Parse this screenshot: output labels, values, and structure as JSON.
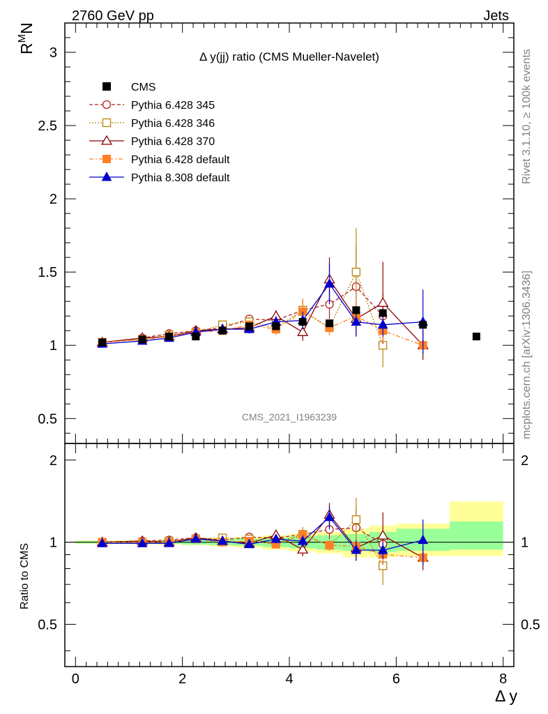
{
  "header": {
    "left": "2760 GeV pp",
    "right": "Jets"
  },
  "side_labels": {
    "rivet": "Rivet 3.1.10, ≥ 100k events",
    "mcplots": "mcplots.cern.ch [arXiv:1306.3436]"
  },
  "watermark": "CMS_2021_I1963239",
  "chart_data": {
    "type": "line",
    "title": "Δ y(jj) ratio (CMS Mueller-Navelet)",
    "ylabel_main": "R^M N",
    "ylabel_ratio": "Ratio to CMS",
    "xlabel": "Δ y",
    "xlim": [
      -0.2,
      8.2
    ],
    "ylim_main": [
      0.33,
      3.2
    ],
    "ylim_ratio": [
      0.35,
      2.3
    ],
    "x_ticks": [
      "0",
      "2",
      "4",
      "6",
      "8"
    ],
    "y_ticks_main": [
      "0.5",
      "1",
      "1.5",
      "2",
      "2.5",
      "3"
    ],
    "y_ticks_ratio": [
      "0.5",
      "1",
      "2"
    ],
    "legend_position": "top-left",
    "cms": {
      "name": "CMS",
      "color": "#000000",
      "x": [
        0.5,
        1.25,
        1.75,
        2.25,
        2.75,
        3.25,
        3.75,
        4.25,
        4.75,
        5.25,
        5.75,
        6.5,
        7.5
      ],
      "y": [
        1.02,
        1.04,
        1.06,
        1.06,
        1.1,
        1.13,
        1.13,
        1.16,
        1.15,
        1.24,
        1.22,
        1.14,
        1.06
      ]
    },
    "uncertainty_band": {
      "edges": [
        0.0,
        1.0,
        1.5,
        2.0,
        2.5,
        3.0,
        3.5,
        4.0,
        4.5,
        5.0,
        5.5,
        6.0,
        7.0,
        8.0
      ],
      "inner": [
        [
          0.99,
          1.01
        ],
        [
          0.99,
          1.01
        ],
        [
          0.985,
          1.015
        ],
        [
          0.98,
          1.02
        ],
        [
          0.975,
          1.025
        ],
        [
          0.97,
          1.03
        ],
        [
          0.96,
          1.04
        ],
        [
          0.95,
          1.05
        ],
        [
          0.94,
          1.06
        ],
        [
          0.93,
          1.07
        ],
        [
          0.92,
          1.09
        ],
        [
          0.93,
          1.12
        ],
        [
          0.94,
          1.19
        ]
      ],
      "outer": [
        [
          0.985,
          1.015
        ],
        [
          0.985,
          1.015
        ],
        [
          0.98,
          1.02
        ],
        [
          0.975,
          1.025
        ],
        [
          0.965,
          1.035
        ],
        [
          0.955,
          1.045
        ],
        [
          0.94,
          1.06
        ],
        [
          0.925,
          1.075
        ],
        [
          0.91,
          1.09
        ],
        [
          0.88,
          1.12
        ],
        [
          0.88,
          1.15
        ],
        [
          0.89,
          1.17
        ],
        [
          0.89,
          1.41
        ]
      ],
      "inner_color": "#99ff99",
      "outer_color": "#ffff99"
    },
    "series": [
      {
        "name": "Pythia 6.428 345",
        "color": "#b22222",
        "dash": "5,3",
        "marker": "open-circle",
        "x": [
          0.5,
          1.25,
          1.75,
          2.25,
          2.75,
          3.25,
          3.75,
          4.25,
          4.75,
          5.25,
          5.75
        ],
        "y": [
          1.02,
          1.05,
          1.08,
          1.1,
          1.12,
          1.18,
          1.17,
          1.24,
          1.28,
          1.4,
          1.2
        ],
        "err": [
          0.01,
          0.01,
          0.015,
          0.015,
          0.02,
          0.03,
          0.04,
          0.07,
          0.1,
          0.28,
          0.15
        ]
      },
      {
        "name": "Pythia 6.428 346",
        "color": "#b8860b",
        "dash": "2,2",
        "marker": "open-square",
        "x": [
          0.5,
          1.25,
          1.75,
          2.25,
          2.75,
          3.25,
          3.75,
          4.25,
          4.75,
          5.25,
          5.75
        ],
        "y": [
          1.02,
          1.04,
          1.07,
          1.09,
          1.14,
          1.16,
          1.12,
          1.24,
          1.12,
          1.5,
          1.0
        ],
        "err": [
          0.01,
          0.01,
          0.015,
          0.015,
          0.02,
          0.03,
          0.04,
          0.08,
          0.05,
          0.3,
          0.15
        ]
      },
      {
        "name": "Pythia 6.428 370",
        "color": "#8b0000",
        "dash": "",
        "marker": "open-triangle",
        "x": [
          0.5,
          1.25,
          1.75,
          2.25,
          2.75,
          3.25,
          3.75,
          4.25,
          4.75,
          5.25,
          5.75,
          6.5
        ],
        "y": [
          1.02,
          1.05,
          1.06,
          1.1,
          1.11,
          1.12,
          1.2,
          1.09,
          1.45,
          1.18,
          1.29,
          1.0
        ],
        "err": [
          0.01,
          0.01,
          0.015,
          0.015,
          0.02,
          0.03,
          0.04,
          0.06,
          0.15,
          0.12,
          0.28,
          0.1
        ]
      },
      {
        "name": "Pythia 6.428 default",
        "color": "#ff7f27",
        "dash": "6,3,2,3",
        "marker": "filled-square",
        "x": [
          0.5,
          1.25,
          1.75,
          2.25,
          2.75,
          3.25,
          3.75,
          4.25,
          4.75,
          5.25,
          5.75,
          6.5
        ],
        "y": [
          1.02,
          1.04,
          1.06,
          1.09,
          1.1,
          1.14,
          1.11,
          1.23,
          1.12,
          1.2,
          1.1,
          1.0
        ],
        "err": [
          0.01,
          0.01,
          0.015,
          0.015,
          0.02,
          0.03,
          0.04,
          0.08,
          0.05,
          0.12,
          0.08,
          0.05
        ]
      },
      {
        "name": "Pythia 8.308 default",
        "color": "#0000cc",
        "dash": "",
        "marker": "filled-triangle",
        "x": [
          0.5,
          1.25,
          1.75,
          2.25,
          2.75,
          3.25,
          3.75,
          4.25,
          4.75,
          5.25,
          5.75,
          6.5
        ],
        "y": [
          1.01,
          1.03,
          1.05,
          1.09,
          1.11,
          1.11,
          1.16,
          1.17,
          1.42,
          1.16,
          1.14,
          1.16
        ],
        "err": [
          0.01,
          0.01,
          0.015,
          0.015,
          0.02,
          0.03,
          0.04,
          0.06,
          0.14,
          0.1,
          0.08,
          0.22
        ]
      }
    ]
  }
}
